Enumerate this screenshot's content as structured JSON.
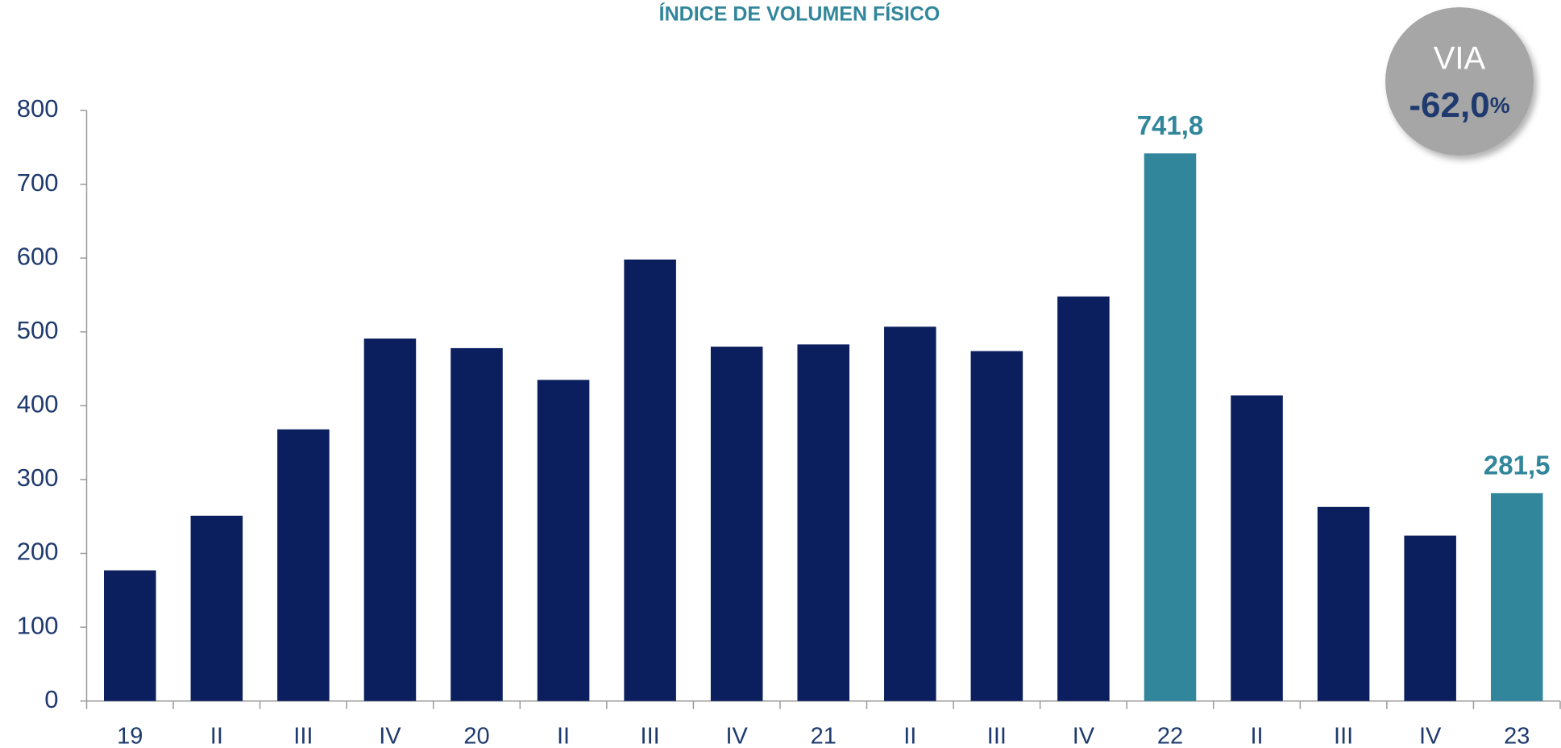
{
  "chart_data": {
    "type": "bar",
    "title": "ÍNDICE DE VOLUMEN FÍSICO",
    "categories": [
      "19",
      "II",
      "III",
      "IV",
      "20",
      "II",
      "III",
      "IV",
      "21",
      "II",
      "III",
      "IV",
      "22",
      "II",
      "III",
      "IV",
      "23"
    ],
    "values": [
      177,
      251,
      368,
      491,
      478,
      435,
      598,
      480,
      483,
      507,
      474,
      548,
      741.8,
      414,
      263,
      224,
      281.5
    ],
    "value_labels": [
      null,
      null,
      null,
      null,
      null,
      null,
      null,
      null,
      null,
      null,
      null,
      null,
      "741,8",
      null,
      null,
      null,
      "281,5"
    ],
    "colors": [
      "#0b1f5e",
      "#0b1f5e",
      "#0b1f5e",
      "#0b1f5e",
      "#0b1f5e",
      "#0b1f5e",
      "#0b1f5e",
      "#0b1f5e",
      "#0b1f5e",
      "#0b1f5e",
      "#0b1f5e",
      "#0b1f5e",
      "#31869b",
      "#0b1f5e",
      "#0b1f5e",
      "#0b1f5e",
      "#31869b"
    ],
    "ylim": [
      0,
      800
    ],
    "yticks": [
      0,
      100,
      200,
      300,
      400,
      500,
      600,
      700,
      800
    ],
    "grid": false,
    "badge": {
      "title": "VIA",
      "value": "-62,0",
      "unit": "%"
    }
  }
}
